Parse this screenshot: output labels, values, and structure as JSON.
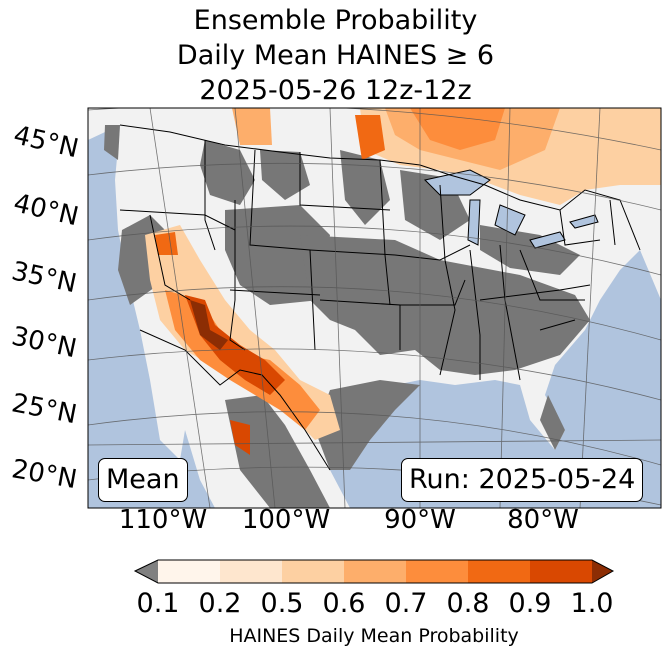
{
  "title": {
    "line1": "Ensemble Probability",
    "line2": "Daily Mean HAINES ≥ 6",
    "line3": "2025-05-26 12z-12z"
  },
  "map": {
    "projection": "Lambert Conformal (CONUS)",
    "lat_labels": [
      "45°N",
      "40°N",
      "35°N",
      "30°N",
      "25°N",
      "20°N"
    ],
    "lon_labels": [
      "110°W",
      "100°W",
      "90°W",
      "80°W"
    ],
    "stat_box": "Mean",
    "run_box": "Run: 2025-05-24",
    "colors": {
      "ocean": "#b0c4de",
      "land_below_threshold": "#f2f2f2",
      "masked": "#777777",
      "borders": "#000000"
    }
  },
  "colorbar": {
    "ticks": [
      "0.1",
      "0.2",
      "0.5",
      "0.6",
      "0.7",
      "0.8",
      "0.9",
      "1.0"
    ],
    "colors": [
      "#fff5eb",
      "#fee6ce",
      "#fdd0a2",
      "#fdae6b",
      "#fd8d3c",
      "#f16913",
      "#d94801"
    ],
    "under_color": "#808080",
    "over_color": "#8c2d04",
    "label": "HAINES Daily Mean Probability"
  }
}
